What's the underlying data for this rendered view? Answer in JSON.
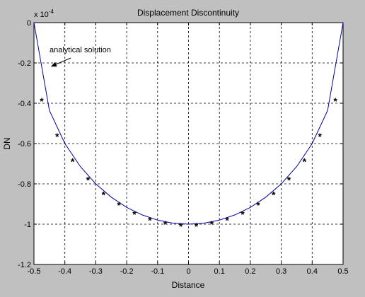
{
  "window": {
    "background": "#c0c0c0"
  },
  "chart_data": {
    "type": "line",
    "title": "Displacement Discontinuity",
    "xlabel": "Distance",
    "ylabel": "DN",
    "exponent_label": "x 10",
    "exponent_power": "-4",
    "xlim": [
      -0.5,
      0.5
    ],
    "ylim": [
      -1.2,
      0
    ],
    "xticks": [
      "-0.5",
      "-0.4",
      "-0.3",
      "-0.2",
      "-0.1",
      "0",
      "0.1",
      "0.2",
      "0.3",
      "0.4",
      "0.5"
    ],
    "yticks": [
      "0",
      "-0.2",
      "-0.4",
      "-0.6",
      "-0.8",
      "-1",
      "-1.2"
    ],
    "grid": true,
    "annotation": {
      "text": "analytical solution",
      "points_to": {
        "x": -0.45,
        "y": -0.22
      }
    },
    "series": [
      {
        "style": "line",
        "color": "#0000a0",
        "x": [
          -0.5,
          -0.45,
          -0.4,
          -0.35,
          -0.3,
          -0.25,
          -0.2,
          -0.15,
          -0.1,
          -0.05,
          0,
          0.05,
          0.1,
          0.15,
          0.2,
          0.25,
          0.3,
          0.35,
          0.4,
          0.45,
          0.5
        ],
        "y": [
          0,
          -0.436,
          -0.6,
          -0.714,
          -0.8,
          -0.866,
          -0.917,
          -0.954,
          -0.98,
          -0.995,
          -1.0,
          -0.995,
          -0.98,
          -0.954,
          -0.917,
          -0.866,
          -0.8,
          -0.714,
          -0.6,
          -0.436,
          0
        ]
      },
      {
        "style": "markers",
        "marker": "*",
        "color": "#007a00",
        "x": [
          -0.475,
          -0.425,
          -0.375,
          -0.325,
          -0.275,
          -0.225,
          -0.175,
          -0.125,
          -0.075,
          -0.025,
          0.025,
          0.075,
          0.125,
          0.175,
          0.225,
          0.275,
          0.325,
          0.375,
          0.425,
          0.475
        ],
        "y": [
          -0.39,
          -0.565,
          -0.69,
          -0.78,
          -0.855,
          -0.905,
          -0.95,
          -0.98,
          -1.0,
          -1.01,
          -1.01,
          -1.0,
          -0.98,
          -0.95,
          -0.905,
          -0.855,
          -0.78,
          -0.69,
          -0.565,
          -0.39
        ]
      }
    ]
  }
}
